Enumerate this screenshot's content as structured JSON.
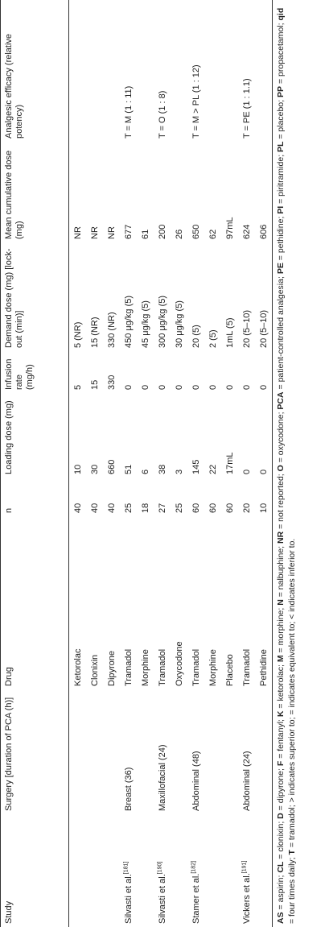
{
  "table": {
    "columns": [
      "Study",
      "Surgery [duration of PCA (h)]",
      "Drug",
      "n",
      "Loading dose (mg)",
      "Infusion rate (mg/h)",
      "Demand dose (mg) [lock-out (min)]",
      "Mean cumulative dose (mg)",
      "Analgesic efficacy (relative potency)"
    ],
    "rows": [
      [
        null,
        null,
        "Ketorolac",
        "40",
        "10",
        "5",
        "5 (NR)",
        "NR",
        null
      ],
      [
        null,
        null,
        "Clonixin",
        "40",
        "30",
        "15",
        "15 (NR)",
        "NR",
        null
      ],
      [
        null,
        null,
        "Dipyrone",
        "40",
        "660",
        "330",
        "330 (NR)",
        "NR",
        null
      ],
      [
        {
          "name": "Silvasti et al.",
          "ref": "[181]"
        },
        "Breast (36)",
        "Tramadol",
        "25",
        "51",
        "0",
        "450 μg/kg (5)",
        "677",
        "T = M (1 : 11)"
      ],
      [
        null,
        null,
        "Morphine",
        "18",
        "6",
        "0",
        "45 μg/kg (5)",
        "61",
        null
      ],
      [
        {
          "name": "Silvasti et al.",
          "ref": "[190]"
        },
        "Maxillofacial (24)",
        "Tramadol",
        "27",
        "38",
        "0",
        "300 μg/kg (5)",
        "200",
        "T = O (1 : 8)"
      ],
      [
        null,
        null,
        "Oxycodone",
        "25",
        "3",
        "0",
        "30 μg/kg (5)",
        "26",
        null
      ],
      [
        {
          "name": "Stamer et al.",
          "ref": "[182]"
        },
        "Abdominal (48)",
        "Tramadol",
        "60",
        "145",
        "0",
        "20 (5)",
        "650",
        "T = M > PL (1 : 12)"
      ],
      [
        null,
        null,
        "Morphine",
        "60",
        "22",
        "0",
        "2 (5)",
        "62",
        null
      ],
      [
        null,
        null,
        "Placebo",
        "60",
        "17mL",
        "0",
        "1mL (5)",
        "97mL",
        null
      ],
      [
        {
          "name": "Vickers et al.",
          "ref": "[191]"
        },
        "Abdominal (24)",
        "Tramadol",
        "20",
        "0",
        "0",
        "20 (5–10)",
        "624",
        "T = PE (1 : 1.1)"
      ],
      [
        null,
        null,
        "Pethidine",
        "10",
        "0",
        "0",
        "20 (5–10)",
        "606",
        null
      ]
    ]
  },
  "footnote": {
    "abbreviations": [
      {
        "term": "AS",
        "def": "= aspirin;"
      },
      {
        "term": "CL",
        "def": "= clonixin;"
      },
      {
        "term": "D",
        "def": "= dipyrone;"
      },
      {
        "term": "F",
        "def": "= fentanyl;"
      },
      {
        "term": "K",
        "def": "= ketorolac;"
      },
      {
        "term": "M",
        "def": "= morphine;"
      },
      {
        "term": "N",
        "def": "= nalbuphine;"
      },
      {
        "term": "NR",
        "def": "= not reported;"
      },
      {
        "term": "O",
        "def": "= oxycodone;"
      },
      {
        "term": "PCA",
        "def": "= patient-controlled analgesia;"
      },
      {
        "term": "PE",
        "def": "= pethidine;"
      },
      {
        "term": "PI",
        "def": "= piritramide;"
      },
      {
        "term": "PL",
        "def": "= placebo;"
      },
      {
        "term": "PP",
        "def": "= propacetamol;"
      },
      {
        "term": "qid",
        "def": "= four times daily;"
      },
      {
        "term": "T",
        "def": "= tramadol;"
      }
    ],
    "symbols": [
      "> indicates superior to;",
      "= indicates equivalent to;",
      "< indicates inferior to."
    ]
  }
}
